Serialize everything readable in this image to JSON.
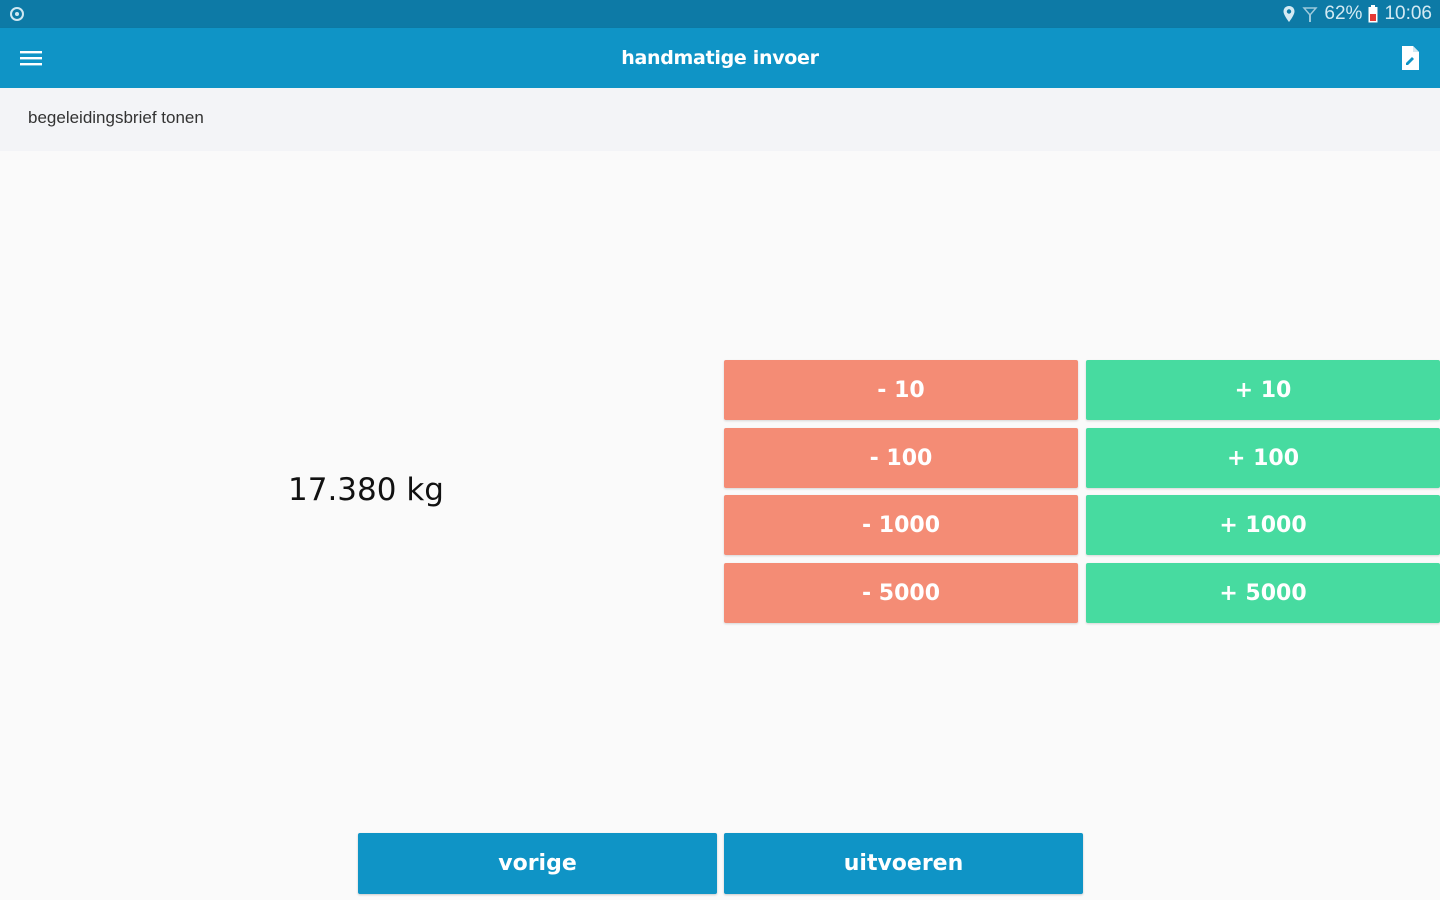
{
  "status_bar": {
    "battery": "62%",
    "time": "10:06",
    "icons": [
      "settings-icon",
      "location-icon",
      "signal-icon",
      "battery-icon"
    ]
  },
  "app_bar": {
    "title": "handmatige invoer",
    "icons": [
      "menu-icon",
      "document-icon"
    ]
  },
  "sub_bar": {
    "label": "begeleidingsbrief tonen"
  },
  "weight": {
    "value": "17.380 kg"
  },
  "adjust_buttons": {
    "minus": [
      "- 10",
      "- 100",
      "- 1000",
      "- 5000"
    ],
    "plus": [
      "+ 10",
      "+ 100",
      "+ 1000",
      "+ 5000"
    ]
  },
  "actions": {
    "previous_label": "vorige",
    "execute_label": "uitvoeren"
  },
  "colors": {
    "status_bar": "#0d7aa6",
    "app_bar": "#0f94c6",
    "minus": "#f48c75",
    "plus": "#47dba0",
    "background": "#fafafa"
  }
}
